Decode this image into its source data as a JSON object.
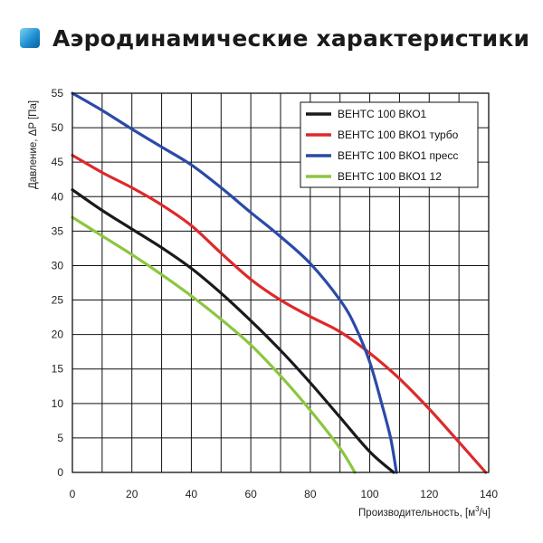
{
  "page": {
    "title": "Аэродинамические характеристики",
    "title_icon": "blue-gradient-square-icon"
  },
  "chart_data": {
    "type": "line",
    "xlabel": "Производительность, [м",
    "xlabel_sup": "3",
    "xlabel_suffix": "/ч]",
    "ylabel": "Давление, ΔP [Па]",
    "xlim": [
      0,
      140
    ],
    "ylim": [
      0,
      55
    ],
    "x_ticks": [
      0,
      20,
      40,
      60,
      80,
      100,
      120,
      140
    ],
    "y_ticks": [
      0,
      5,
      10,
      15,
      20,
      25,
      30,
      35,
      40,
      45,
      50,
      55
    ],
    "x_minor_step": 10,
    "grid": true,
    "legend_position": "top-right",
    "series": [
      {
        "name": "ВЕНТС 100 ВКО1",
        "color": "#1a1a1a",
        "points": [
          [
            0,
            41
          ],
          [
            10,
            38
          ],
          [
            20,
            35.3
          ],
          [
            30,
            32.6
          ],
          [
            40,
            29.6
          ],
          [
            50,
            26
          ],
          [
            60,
            22
          ],
          [
            70,
            17.7
          ],
          [
            80,
            13
          ],
          [
            90,
            8
          ],
          [
            100,
            3
          ],
          [
            108,
            0
          ]
        ]
      },
      {
        "name": "ВЕНТС 100 ВКО1 турбо",
        "color": "#dd2a2a",
        "points": [
          [
            0,
            46
          ],
          [
            10,
            43.5
          ],
          [
            20,
            41.3
          ],
          [
            30,
            38.8
          ],
          [
            40,
            35.8
          ],
          [
            50,
            31.8
          ],
          [
            60,
            28
          ],
          [
            70,
            25
          ],
          [
            80,
            22.6
          ],
          [
            90,
            20.4
          ],
          [
            100,
            17.3
          ],
          [
            110,
            13.6
          ],
          [
            120,
            9.2
          ],
          [
            130,
            4.4
          ],
          [
            139,
            0
          ]
        ]
      },
      {
        "name": "ВЕНТС 100 ВКО1 пресс",
        "color": "#2b4aa8",
        "points": [
          [
            0,
            55
          ],
          [
            10,
            52.5
          ],
          [
            20,
            49.8
          ],
          [
            30,
            47.2
          ],
          [
            40,
            44.6
          ],
          [
            50,
            41.3
          ],
          [
            60,
            37.7
          ],
          [
            70,
            34.2
          ],
          [
            80,
            30.3
          ],
          [
            90,
            25
          ],
          [
            95,
            21.3
          ],
          [
            100,
            16
          ],
          [
            104,
            10
          ],
          [
            107,
            5
          ],
          [
            109,
            0
          ]
        ]
      },
      {
        "name": "ВЕНТС 100 ВКО1 12",
        "color": "#8cc63f",
        "points": [
          [
            0,
            37
          ],
          [
            10,
            34.3
          ],
          [
            20,
            31.6
          ],
          [
            30,
            28.7
          ],
          [
            40,
            25.6
          ],
          [
            50,
            22.2
          ],
          [
            60,
            18.5
          ],
          [
            70,
            14
          ],
          [
            80,
            9
          ],
          [
            90,
            3.5
          ],
          [
            95,
            0
          ]
        ]
      }
    ]
  }
}
